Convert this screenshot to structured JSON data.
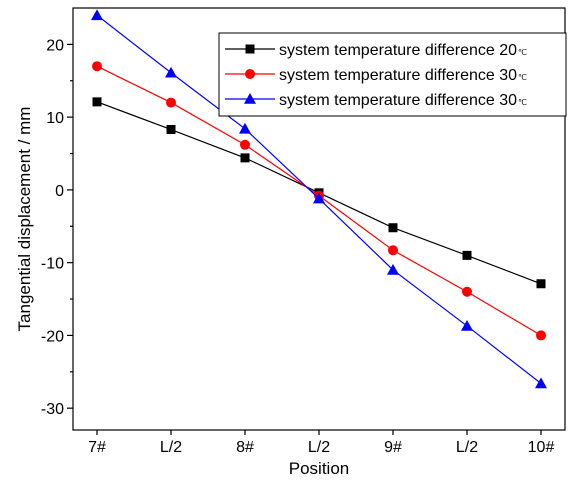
{
  "chart_data": {
    "type": "line",
    "title": "",
    "xlabel": "Position",
    "ylabel": "Tangential displacement / mm",
    "categories": [
      "7#",
      "L/2",
      "8#",
      "L/2",
      "9#",
      "L/2",
      "10#"
    ],
    "ylim": [
      -33,
      25
    ],
    "yticks": [
      -30,
      -20,
      -10,
      0,
      10,
      20
    ],
    "grid": false,
    "legend_position": "top-right",
    "series": [
      {
        "name": "system temperature difference 20",
        "unit_mark": "℃",
        "color": "#000000",
        "marker": "square",
        "values": [
          12.1,
          8.3,
          4.4,
          -0.4,
          -5.2,
          -9.0,
          -12.9
        ]
      },
      {
        "name": "system temperature difference 30",
        "unit_mark": "℃",
        "color": "#ff0000",
        "marker": "circle",
        "values": [
          17.0,
          12.0,
          6.2,
          -0.8,
          -8.3,
          -14.0,
          -20.0
        ]
      },
      {
        "name": "system temperature difference 30",
        "unit_mark": "℃",
        "color": "#0000ff",
        "marker": "triangle",
        "values": [
          24.0,
          16.1,
          8.4,
          -1.2,
          -11.0,
          -18.7,
          -26.6
        ]
      }
    ]
  }
}
